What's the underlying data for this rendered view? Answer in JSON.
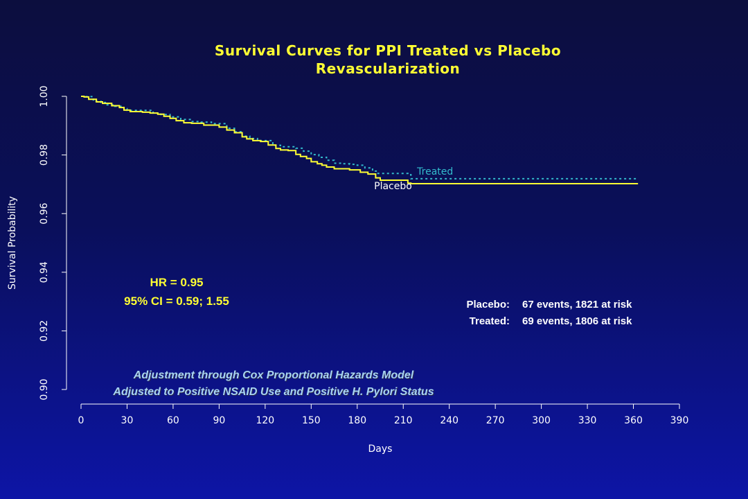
{
  "title_line1": "Survival Curves for PPI Treated vs Placebo",
  "title_line2": "Revascularization",
  "hr_line1": "HR = 0.95",
  "hr_line2": "95% CI = 0.59; 1.55",
  "events": {
    "placebo_label": "Placebo:",
    "placebo_value": "67 events, 1821 at risk",
    "treated_label": "Treated:",
    "treated_value": "69 events, 1806 at risk"
  },
  "adjustment_line1": "Adjustment through Cox Proportional Hazards Model",
  "adjustment_line2": "Adjusted to Positive NSAID Use and  Positive H. Pylori Status",
  "colors": {
    "placebo": "#ffff33",
    "treated": "#33bbcc",
    "axis": "#ffffff",
    "title": "#ffff33"
  },
  "chart_data": {
    "type": "line",
    "xlabel": "Days",
    "ylabel": "Survival Probability",
    "xlim": [
      0,
      390
    ],
    "ylim": [
      0.9,
      1.0
    ],
    "xticks": [
      0,
      30,
      60,
      90,
      120,
      150,
      180,
      210,
      240,
      270,
      300,
      330,
      360,
      390
    ],
    "yticks": [
      "0.90",
      "0.92",
      "0.94",
      "0.96",
      "0.98",
      "1.00"
    ],
    "step": true,
    "series": [
      {
        "name": "Treated",
        "style": "dotted",
        "x": [
          0,
          2,
          8,
          13,
          17,
          22,
          28,
          30,
          40,
          47,
          52,
          58,
          65,
          72,
          78,
          85,
          95,
          100,
          105,
          110,
          115,
          125,
          130,
          140,
          145,
          150,
          155,
          160,
          165,
          170,
          175,
          180,
          185,
          190,
          193,
          213,
          215,
          363
        ],
        "y": [
          1.0,
          0.9999,
          0.9983,
          0.9979,
          0.9971,
          0.9966,
          0.9958,
          0.9952,
          0.9952,
          0.9943,
          0.9938,
          0.993,
          0.9921,
          0.9914,
          0.9912,
          0.9907,
          0.9891,
          0.9879,
          0.9864,
          0.9856,
          0.9849,
          0.9833,
          0.9828,
          0.9823,
          0.9813,
          0.9801,
          0.9792,
          0.9782,
          0.9772,
          0.977,
          0.9768,
          0.9765,
          0.9756,
          0.9745,
          0.9737,
          0.9733,
          0.9719,
          0.9719
        ]
      },
      {
        "name": "Placebo",
        "style": "solid",
        "x": [
          0,
          2,
          5,
          10,
          14,
          20,
          25,
          28,
          32,
          40,
          45,
          50,
          54,
          58,
          62,
          67,
          72,
          80,
          90,
          95,
          100,
          105,
          108,
          112,
          117,
          122,
          127,
          130,
          135,
          140,
          143,
          147,
          150,
          154,
          157,
          160,
          165,
          175,
          182,
          187,
          192,
          195,
          200,
          213,
          215,
          363
        ],
        "y": [
          1.0,
          0.9998,
          0.999,
          0.9981,
          0.9976,
          0.9968,
          0.9962,
          0.9953,
          0.9948,
          0.9946,
          0.9943,
          0.9939,
          0.9932,
          0.9925,
          0.9917,
          0.991,
          0.9908,
          0.9902,
          0.9895,
          0.9885,
          0.9876,
          0.9862,
          0.9855,
          0.9849,
          0.9846,
          0.9834,
          0.9822,
          0.9817,
          0.9815,
          0.9802,
          0.9795,
          0.9788,
          0.9777,
          0.977,
          0.9765,
          0.9759,
          0.9753,
          0.9749,
          0.9741,
          0.9735,
          0.9722,
          0.9714,
          0.9714,
          0.9704,
          0.9702,
          0.9702
        ]
      }
    ],
    "series_labels": [
      {
        "text": "Treated",
        "x": 219,
        "y": 0.9733
      },
      {
        "text": "Placebo",
        "x": 191,
        "y": 0.9683
      }
    ]
  }
}
